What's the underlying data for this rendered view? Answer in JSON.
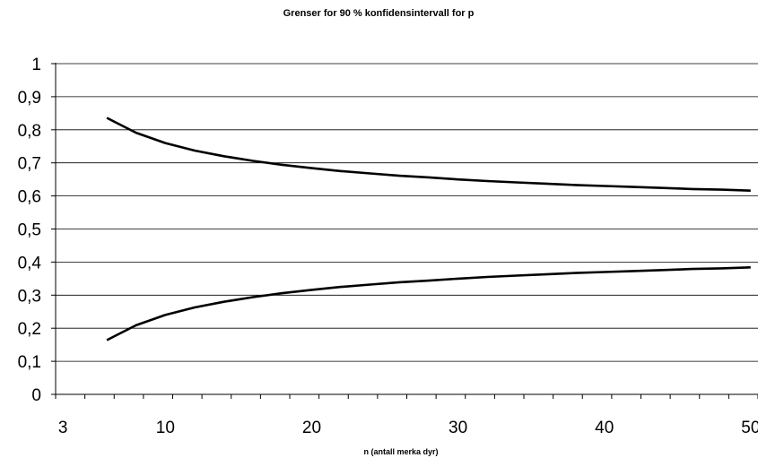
{
  "chart_data": {
    "type": "line",
    "title": "Grenser for 90 % konfidensintervall for p",
    "xlabel": "n (antall merka dyr)",
    "ylabel": "",
    "ylim": [
      0,
      1
    ],
    "yticks": [
      "0",
      "0,1",
      "0,2",
      "0,3",
      "0,4",
      "0,5",
      "0,6",
      "0,7",
      "0,8",
      "0,9",
      "1"
    ],
    "xtick_labels": [
      {
        "n": 3,
        "label": "3"
      },
      {
        "n": 10,
        "label": "10"
      },
      {
        "n": 20,
        "label": "20"
      },
      {
        "n": 30,
        "label": "30"
      },
      {
        "n": 40,
        "label": "40"
      },
      {
        "n": 50,
        "label": "50"
      }
    ],
    "x_categories": [
      3,
      4,
      5,
      6,
      7,
      8,
      9,
      10,
      11,
      12,
      13,
      14,
      15,
      16,
      17,
      18,
      19,
      20,
      21,
      22,
      23,
      24,
      25,
      26,
      27,
      28,
      29,
      30,
      31,
      32,
      33,
      34,
      35,
      36,
      37,
      38,
      39,
      40,
      41,
      42,
      43,
      44,
      45,
      46,
      47,
      48,
      49,
      50
    ],
    "grid": true,
    "series": [
      {
        "x": [
          6,
          8,
          10,
          12,
          14,
          16,
          18,
          20,
          22,
          24,
          26,
          28,
          30,
          32,
          34,
          36,
          38,
          40,
          42,
          44,
          46,
          48,
          50
        ],
        "values": [
          0.836,
          0.791,
          0.76,
          0.737,
          0.72,
          0.706,
          0.694,
          0.684,
          0.675,
          0.668,
          0.661,
          0.656,
          0.65,
          0.645,
          0.641,
          0.637,
          0.633,
          0.63,
          0.627,
          0.624,
          0.621,
          0.619,
          0.616
        ]
      },
      {
        "x": [
          6,
          8,
          10,
          12,
          14,
          16,
          18,
          20,
          22,
          24,
          26,
          28,
          30,
          32,
          34,
          36,
          38,
          40,
          42,
          44,
          46,
          48,
          50
        ],
        "values": [
          0.164,
          0.209,
          0.24,
          0.263,
          0.28,
          0.294,
          0.306,
          0.316,
          0.325,
          0.332,
          0.339,
          0.344,
          0.35,
          0.355,
          0.359,
          0.363,
          0.367,
          0.37,
          0.373,
          0.376,
          0.379,
          0.381,
          0.384
        ]
      }
    ]
  }
}
